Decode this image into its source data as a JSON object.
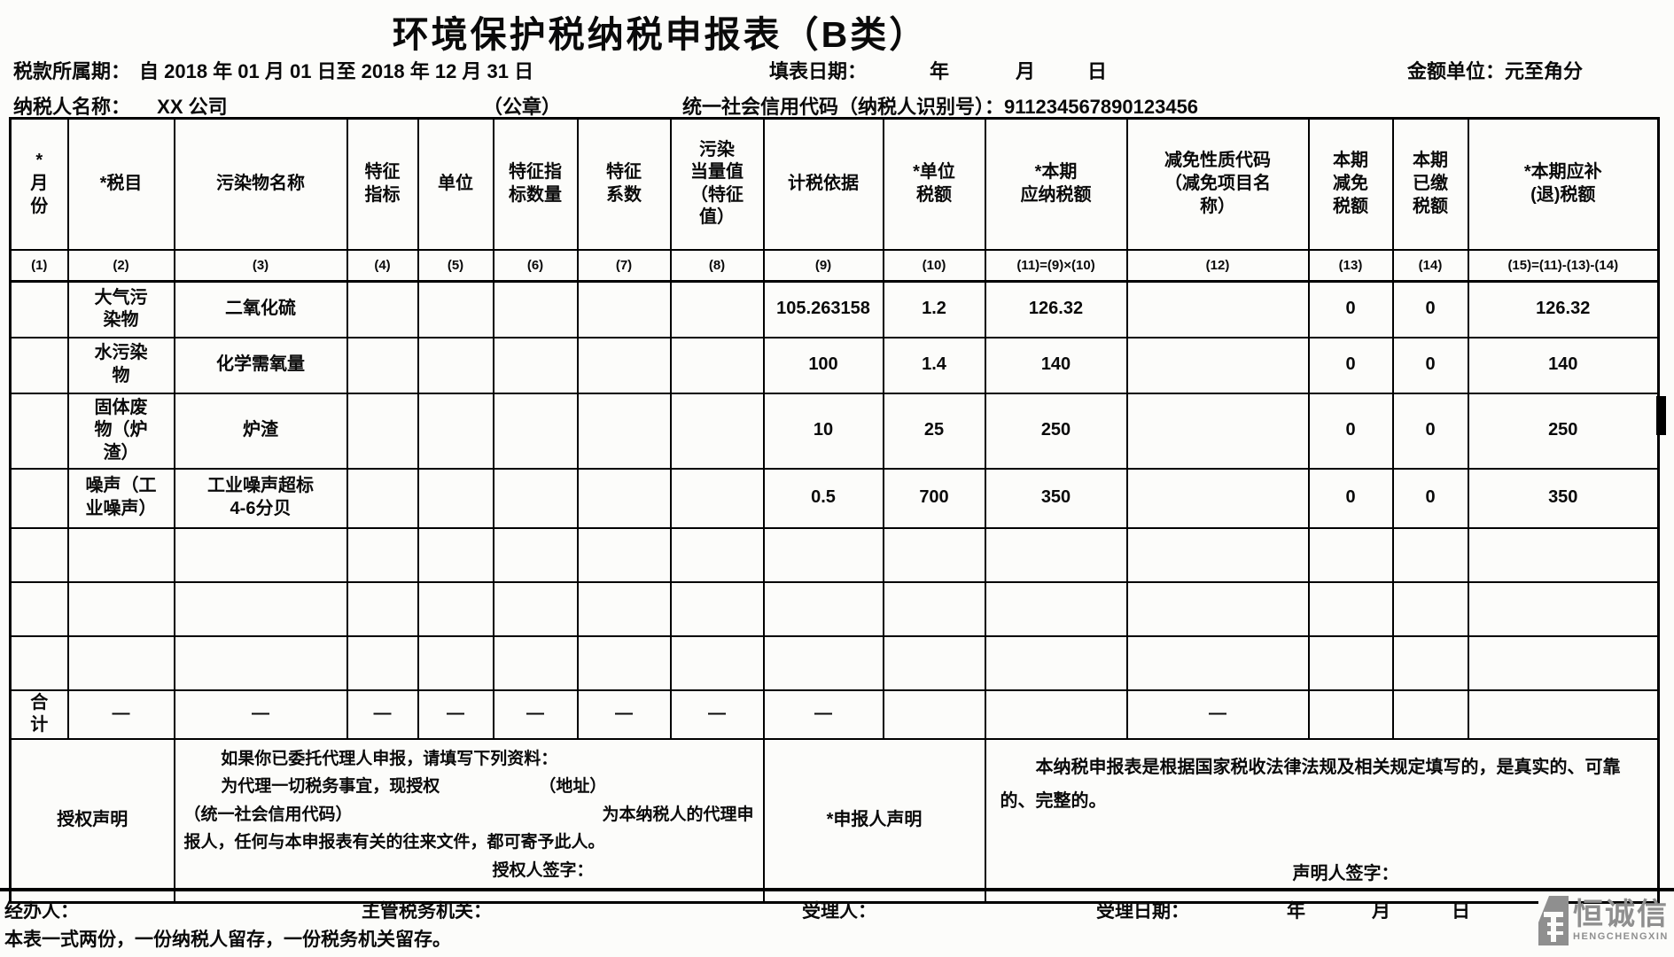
{
  "title": "环境保护税纳税申报表（B类）",
  "header": {
    "period_label": "税款所属期：",
    "period_value": "自 2018 年 01 月 01 日至 2018 年 12 月 31 日",
    "fill_date_label": "填表日期：",
    "fill_year": "年",
    "fill_month": "月",
    "fill_day": "日",
    "amount_unit": "金额单位：元至角分",
    "taxpayer_label": "纳税人名称：",
    "taxpayer_value": "XX 公司",
    "seal": "（公章）",
    "credit_label": "统一社会信用代码（纳税人识别号）：",
    "credit_value": "911234567890123456"
  },
  "table": {
    "columns": [
      "*\n月\n份",
      "*税目",
      "污染物名称",
      "特征\n指标",
      "单位",
      "特征指\n标数量",
      "特征\n系数",
      "污染\n当量值\n（特征\n值）",
      "计税依据",
      "*单位\n税额",
      "*本期\n应纳税额",
      "减免性质代码\n（减免项目名\n称）",
      "本期\n减免\n税额",
      "本期\n已缴\n税额",
      "*本期应补\n(退)税额"
    ],
    "numbering": [
      "(1)",
      "(2)",
      "(3)",
      "(4)",
      "(5)",
      "(6)",
      "(7)",
      "(8)",
      "(9)",
      "(10)",
      "(11)=(9)×(10)",
      "(12)",
      "(13)",
      "(14)",
      "(15)=(11)-(13)-(14)"
    ],
    "rows": [
      [
        "",
        "大气污\n染物",
        "二氧化硫",
        "",
        "",
        "",
        "",
        "",
        "105.263158",
        "1.2",
        "126.32",
        "",
        "0",
        "0",
        "126.32"
      ],
      [
        "",
        "水污染\n物",
        "化学需氧量",
        "",
        "",
        "",
        "",
        "",
        "100",
        "1.4",
        "140",
        "",
        "0",
        "0",
        "140"
      ],
      [
        "",
        "固体废\n物（炉\n渣）",
        "炉渣",
        "",
        "",
        "",
        "",
        "",
        "10",
        "25",
        "250",
        "",
        "0",
        "0",
        "250"
      ],
      [
        "",
        "噪声（工\n业噪声）",
        "工业噪声超标\n4-6分贝",
        "",
        "",
        "",
        "",
        "",
        "0.5",
        "700",
        "350",
        "",
        "0",
        "0",
        "350"
      ],
      [
        "",
        "",
        "",
        "",
        "",
        "",
        "",
        "",
        "",
        "",
        "",
        "",
        "",
        "",
        ""
      ],
      [
        "",
        "",
        "",
        "",
        "",
        "",
        "",
        "",
        "",
        "",
        "",
        "",
        "",
        "",
        ""
      ],
      [
        "",
        "",
        "",
        "",
        "",
        "",
        "",
        "",
        "",
        "",
        "",
        "",
        "",
        "",
        ""
      ],
      [
        "合\n计",
        "—",
        "—",
        "—",
        "—",
        "—",
        "—",
        "—",
        "—",
        "",
        "",
        "—",
        "",
        "",
        ""
      ]
    ]
  },
  "bottom": {
    "auth_label": "授权声明",
    "auth_line1": "如果你已委托代理人申报，请填写下列资料：",
    "auth_line2a": "为代理一切税务事宜，现授权",
    "auth_line2b": "（地址）",
    "auth_line3a": "（统一社会信用代码）",
    "auth_line3b": "为本纳税人的代理申",
    "auth_line4": "报人，任何与本申报表有关的往来文件，都可寄予此人。",
    "auth_sign": "授权人签字：",
    "declarant_label": "*申报人声明",
    "declare_text": "本纳税申报表是根据国家税收法律法规及相关规定填写的，是真实的、可靠的、完整的。",
    "declare_sign": "声明人签字："
  },
  "footer": {
    "agent_label": "经办人：",
    "authority_label": "主管税务机关：",
    "acceptor_label": "受理人：",
    "accept_date_label": "受理日期：",
    "year": "年",
    "month": "月",
    "day": "日",
    "note": "本表一式两份，一份纳税人留存，一份税务机关留存。"
  },
  "logo": {
    "name": "恒诚信",
    "sub": "HENGCHENGXIN"
  },
  "colors": {
    "border": "#000000",
    "text": "#0a0a0a",
    "logo_gray": "#8f8f8f"
  }
}
